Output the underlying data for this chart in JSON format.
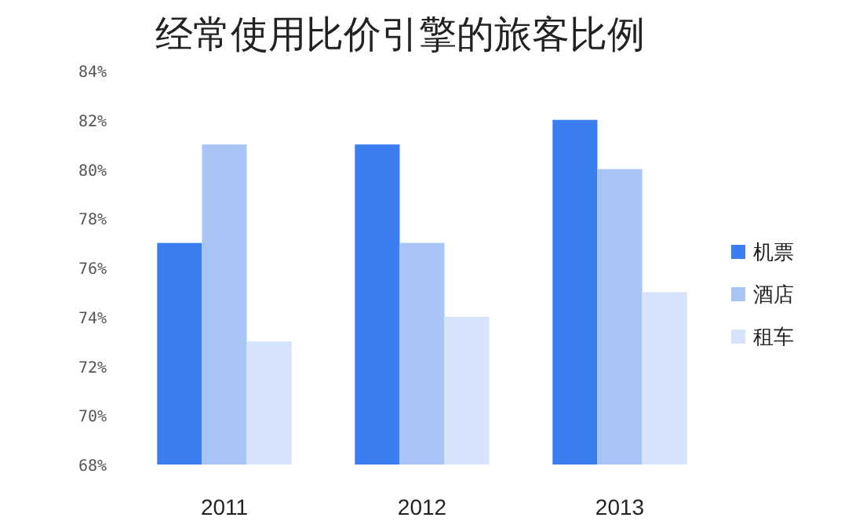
{
  "chart_data": {
    "type": "bar",
    "title": "经常使用比价引擎的旅客比例",
    "categories": [
      "2011",
      "2012",
      "2013"
    ],
    "series": [
      {
        "name": "机票",
        "color": "#3a7ef0",
        "values": [
          77,
          81,
          82
        ]
      },
      {
        "name": "酒店",
        "color": "#a9c5f6",
        "values": [
          81,
          77,
          80
        ]
      },
      {
        "name": "租车",
        "color": "#d5e3fb",
        "values": [
          73,
          74,
          75
        ]
      }
    ],
    "ylim": [
      68,
      84
    ],
    "yticks": [
      {
        "value": 68,
        "label": "68%"
      },
      {
        "value": 70,
        "label": "70%"
      },
      {
        "value": 72,
        "label": "72%"
      },
      {
        "value": 74,
        "label": "74%"
      },
      {
        "value": 76,
        "label": "76%"
      },
      {
        "value": 78,
        "label": "78%"
      },
      {
        "value": 80,
        "label": "80%"
      },
      {
        "value": 82,
        "label": "82%"
      },
      {
        "value": 84,
        "label": "84%"
      }
    ],
    "legend": "right"
  }
}
